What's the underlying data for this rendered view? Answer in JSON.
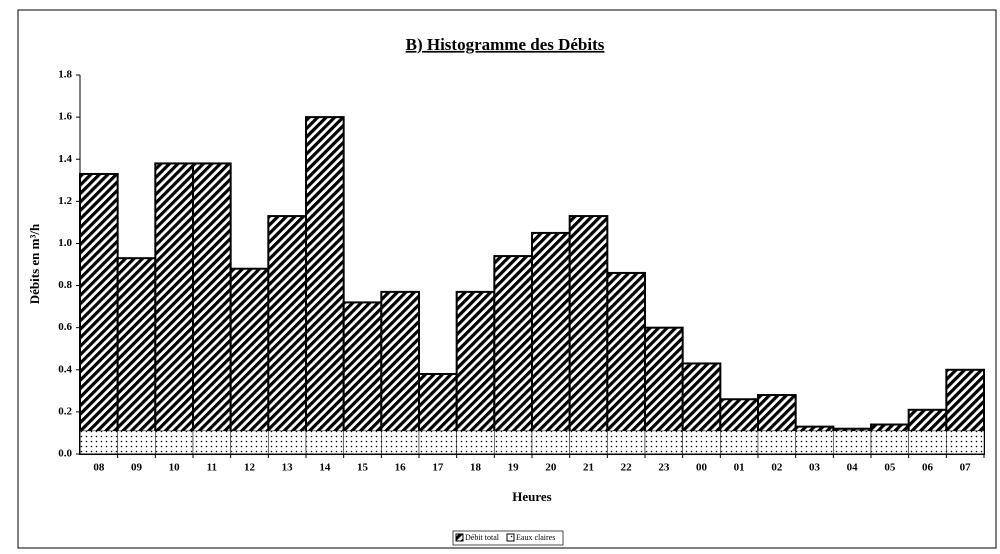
{
  "chart_data": {
    "type": "bar",
    "title": "B) Histogramme des Débits",
    "x_label": "Heures",
    "y_label": "Débits en m³/h",
    "categories": [
      "08",
      "09",
      "10",
      "11",
      "12",
      "13",
      "14",
      "15",
      "16",
      "17",
      "18",
      "19",
      "20",
      "21",
      "22",
      "23",
      "00",
      "01",
      "02",
      "03",
      "04",
      "05",
      "06",
      "07"
    ],
    "series": [
      {
        "name": "Débit total",
        "color": "#000000",
        "values": [
          1.33,
          0.93,
          1.38,
          1.38,
          0.88,
          1.13,
          1.6,
          0.72,
          0.77,
          0.38,
          0.77,
          0.94,
          1.05,
          1.13,
          0.86,
          0.6,
          0.43,
          0.26,
          0.28,
          0.13,
          0.12,
          0.14,
          0.21,
          0.4
        ]
      },
      {
        "name": "Eaux claires",
        "color": "#000000",
        "values": [
          0.11,
          0.11,
          0.11,
          0.11,
          0.11,
          0.11,
          0.11,
          0.11,
          0.11,
          0.11,
          0.11,
          0.11,
          0.11,
          0.11,
          0.11,
          0.11,
          0.11,
          0.11,
          0.11,
          0.11,
          0.11,
          0.11,
          0.11,
          0.11
        ]
      }
    ],
    "ylim": [
      0,
      1.8
    ],
    "yticks": [
      {
        "value": 0,
        "label": "0.0"
      },
      0.2,
      0.4,
      0.6,
      0.8,
      {
        "value": 1,
        "label": "1.0"
      },
      1.2,
      1.4,
      1.6,
      1.8
    ]
  }
}
